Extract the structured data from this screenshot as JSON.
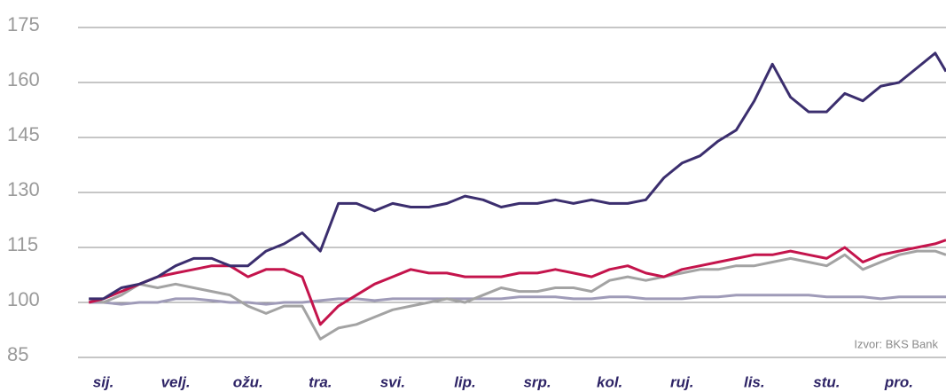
{
  "chart_data": {
    "type": "line",
    "annotation": "Izvor: BKS Bank",
    "x": [
      -0.2,
      0,
      0.25,
      0.5,
      0.75,
      1,
      1.25,
      1.5,
      1.75,
      2,
      2.25,
      2.5,
      2.75,
      3,
      3.25,
      3.5,
      3.75,
      4,
      4.25,
      4.5,
      4.75,
      5,
      5.25,
      5.5,
      5.75,
      6,
      6.25,
      6.5,
      6.75,
      7,
      7.25,
      7.5,
      7.75,
      8,
      8.25,
      8.5,
      8.75,
      9,
      9.25,
      9.5,
      9.75,
      10,
      10.25,
      10.5,
      10.75,
      11,
      11.25,
      11.5,
      11.65
    ],
    "series": [
      {
        "color": "#9f9bb8",
        "values": [
          100,
          100,
          99.5,
          100,
          100,
          101,
          101,
          100.5,
          100,
          100,
          99.5,
          100,
          100,
          100.5,
          101,
          101,
          100.5,
          101,
          101,
          101,
          101,
          101,
          101,
          101,
          101.5,
          101.5,
          101.5,
          101,
          101,
          101.5,
          101.5,
          101,
          101,
          101,
          101.5,
          101.5,
          102,
          102,
          102,
          102,
          102,
          101.5,
          101.5,
          101.5,
          101,
          101.5,
          101.5,
          101.5,
          101.5
        ]
      },
      {
        "color": "#a3a3a3",
        "values": [
          101,
          100,
          102,
          105,
          104,
          105,
          104,
          103,
          102,
          99,
          97,
          99,
          99,
          90,
          93,
          94,
          96,
          98,
          99,
          100,
          101,
          100,
          102,
          104,
          103,
          103,
          104,
          104,
          103,
          106,
          107,
          106,
          107,
          108,
          109,
          109,
          110,
          110,
          111,
          112,
          111,
          110,
          113,
          109,
          111,
          113,
          114,
          114,
          113
        ]
      },
      {
        "color": "#c4144c",
        "values": [
          100,
          101,
          103,
          105,
          107,
          108,
          109,
          110,
          110,
          107,
          109,
          109,
          107,
          94,
          99,
          102,
          105,
          107,
          109,
          108,
          108,
          107,
          107,
          107,
          108,
          108,
          109,
          108,
          107,
          109,
          110,
          108,
          107,
          109,
          110,
          111,
          112,
          113,
          113,
          114,
          113,
          112,
          115,
          111,
          113,
          114,
          115,
          116,
          117
        ]
      },
      {
        "color": "#3b2e6e",
        "values": [
          101,
          101,
          104,
          105,
          107,
          110,
          112,
          112,
          110,
          110,
          114,
          116,
          119,
          114,
          127,
          127,
          125,
          127,
          126,
          126,
          127,
          129,
          128,
          126,
          127,
          127,
          128,
          127,
          128,
          127,
          127,
          128,
          134,
          138,
          140,
          144,
          147,
          155,
          165,
          156,
          152,
          152,
          157,
          155,
          159,
          160,
          164,
          168,
          163
        ]
      }
    ],
    "xlim": [
      -0.35,
      11.65
    ],
    "xticks": [
      {
        "value": 0,
        "label": "sij."
      },
      {
        "value": 1,
        "label": "velj."
      },
      {
        "value": 2,
        "label": "ožu."
      },
      {
        "value": 3,
        "label": "tra."
      },
      {
        "value": 4,
        "label": "svi."
      },
      {
        "value": 5,
        "label": "lip."
      },
      {
        "value": 6,
        "label": "srp."
      },
      {
        "value": 7,
        "label": "kol."
      },
      {
        "value": 8,
        "label": "ruj."
      },
      {
        "value": 9,
        "label": "lis."
      },
      {
        "value": 10,
        "label": "stu."
      },
      {
        "value": 11,
        "label": "pro."
      }
    ],
    "ylim": [
      85,
      175
    ],
    "yticks": [
      85,
      100,
      115,
      130,
      145,
      160,
      175
    ],
    "grid": true
  }
}
